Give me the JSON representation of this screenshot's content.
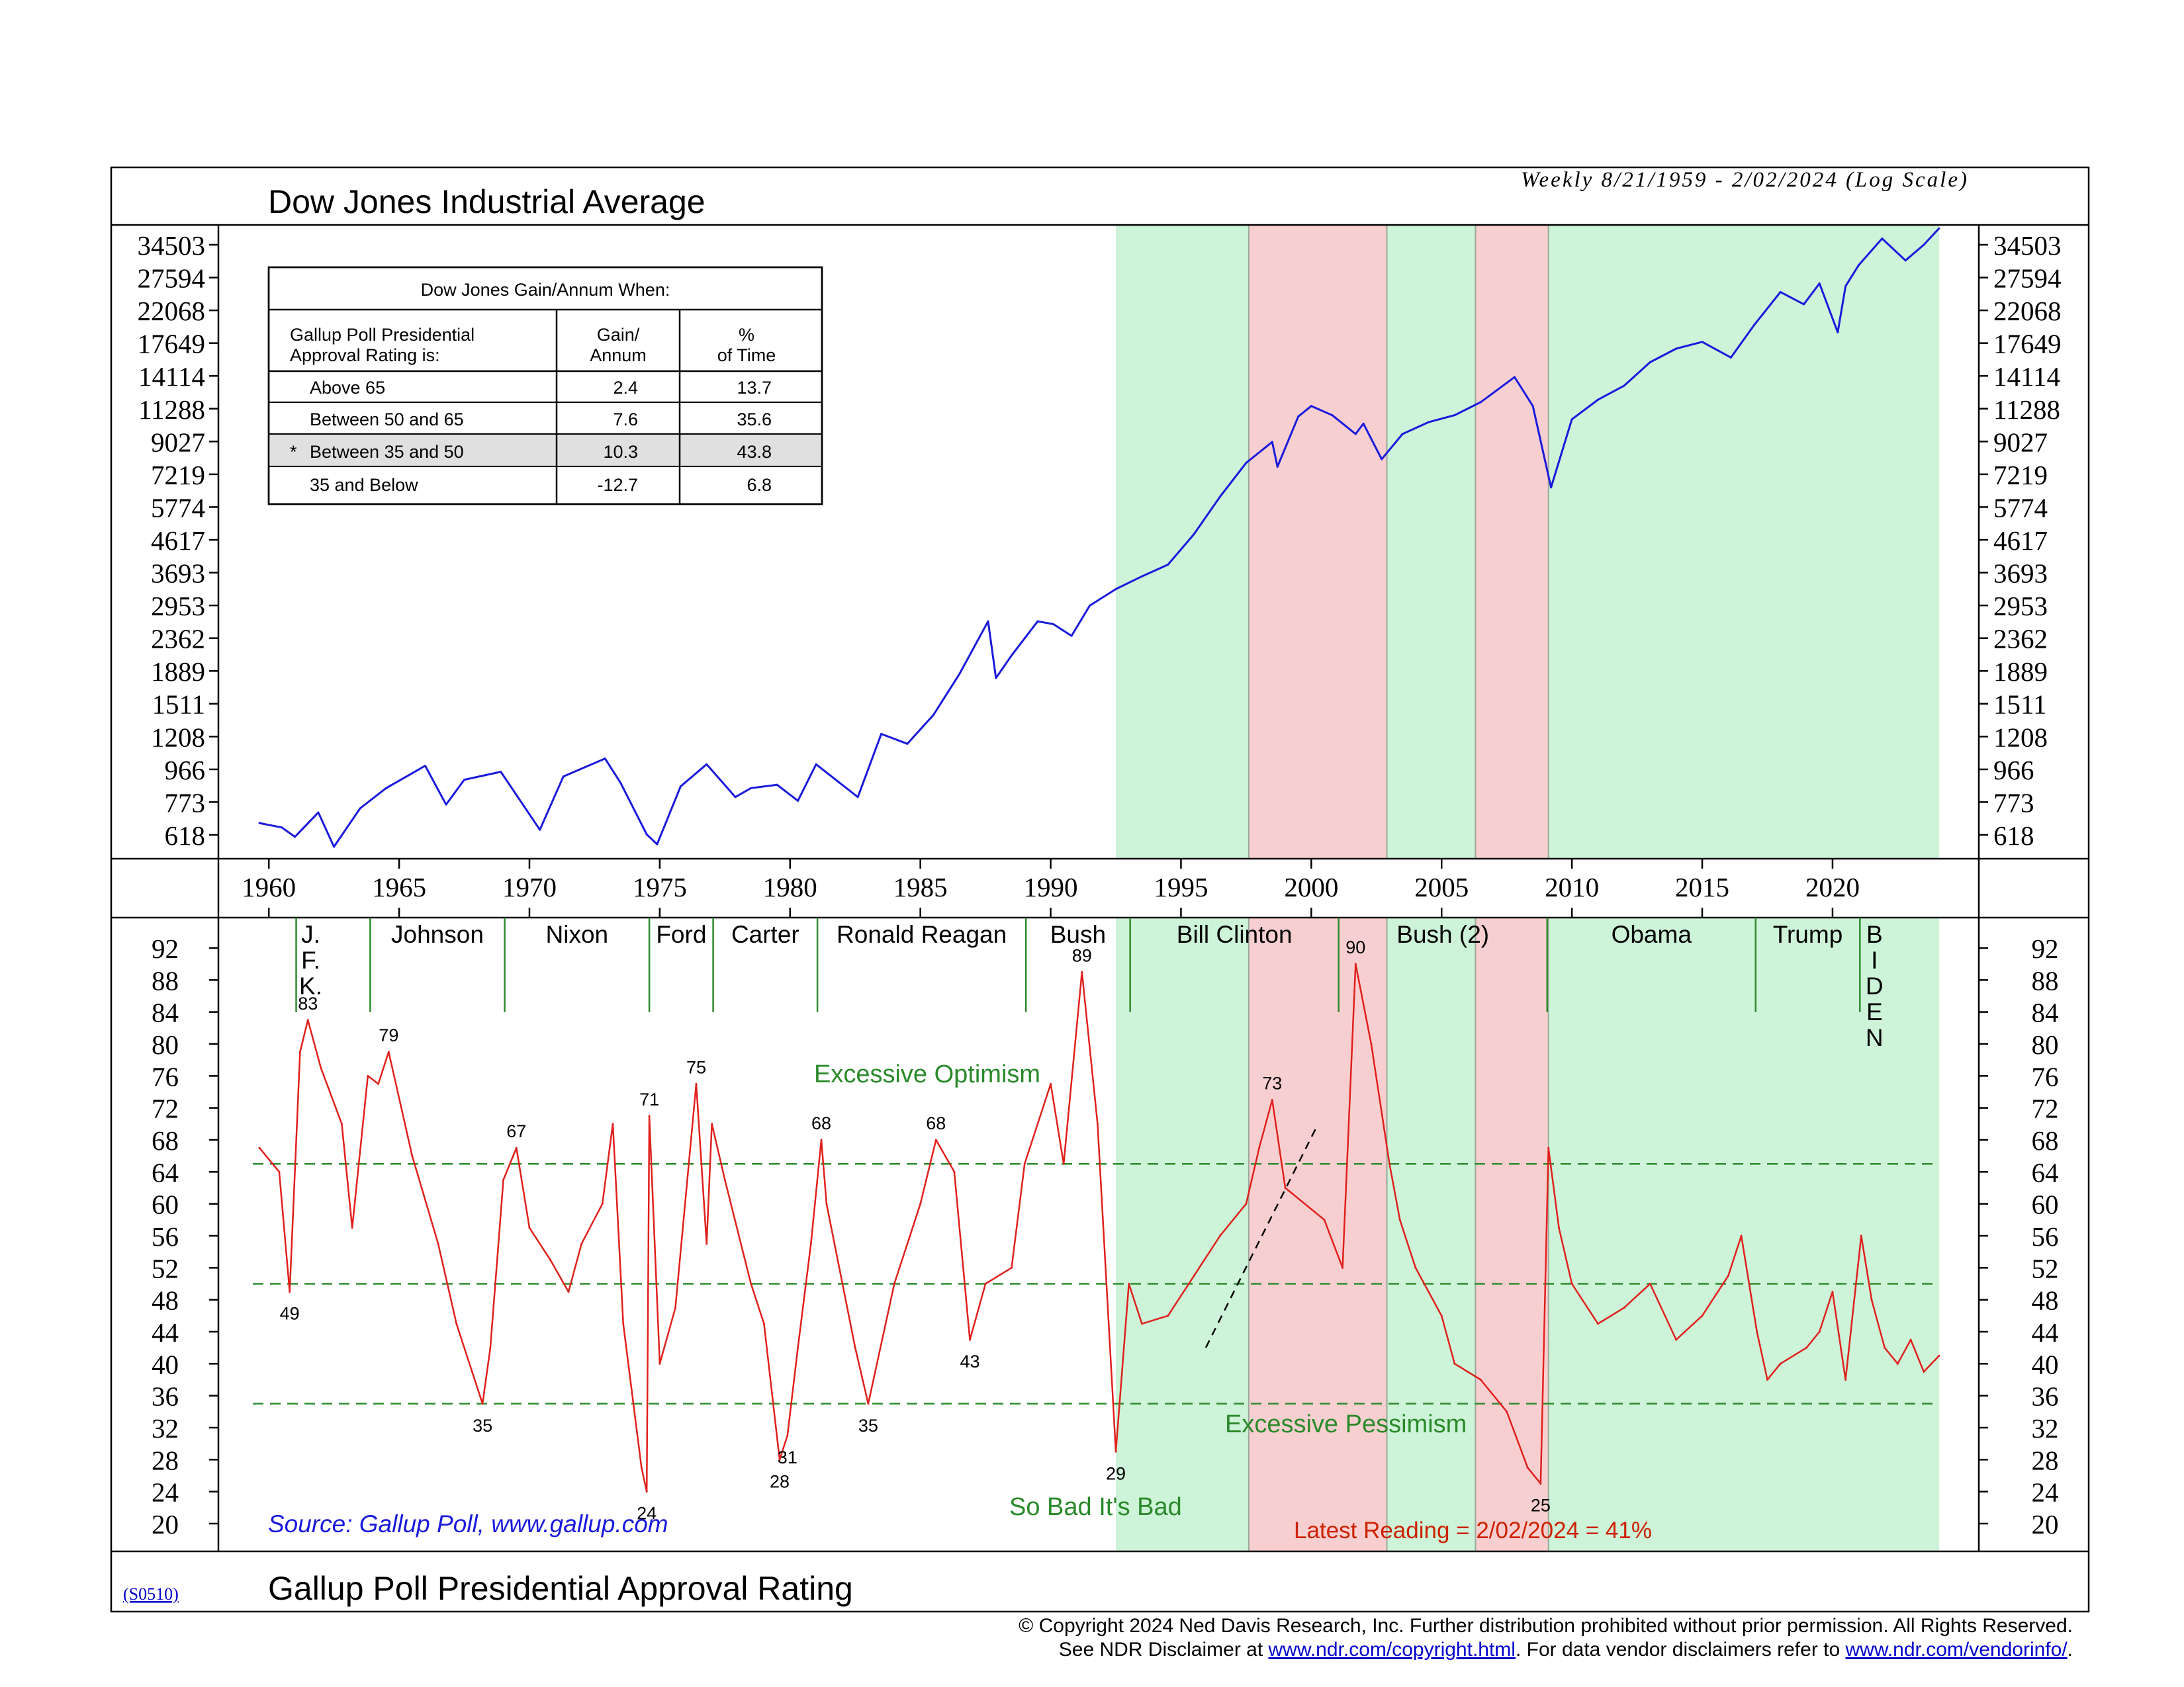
{
  "header": {
    "title": "Dow Jones Industrial Average",
    "subtitle": "Weekly 8/21/1959 - 2/02/2024 (Log Scale)",
    "bottom_title": "Gallup Poll Presidential Approval Rating",
    "code": "(S0510)"
  },
  "gain_table": {
    "title": "Dow Jones Gain/Annum When:",
    "header_col1_line1": "Gallup Poll Presidential",
    "header_col1_line2": "Approval Rating is:",
    "header_col2_line1": "Gain/",
    "header_col2_line2": "Annum",
    "header_col3_line1": "%",
    "header_col3_line2": "of Time",
    "rows": [
      {
        "label": "Above 65",
        "gain": "2.4",
        "time": "13.7",
        "marker": "",
        "highlight": false
      },
      {
        "label": "Between 50 and 65",
        "gain": "7.6",
        "time": "35.6",
        "marker": "",
        "highlight": false
      },
      {
        "label": "Between 35 and 50",
        "gain": "10.3",
        "time": "43.8",
        "marker": "*",
        "highlight": true
      },
      {
        "label": "35 and Below",
        "gain": "-12.7",
        "time": "6.8",
        "marker": "",
        "highlight": false
      }
    ]
  },
  "annotations": {
    "excessive_optimism": "Excessive Optimism",
    "excessive_pessimism": "Excessive Pessimism",
    "so_bad": "So Bad It's Bad",
    "latest": "Latest Reading = 2/02/2024 = 41%",
    "source": "Source: Gallup Poll, www.gallup.com"
  },
  "footer": {
    "line1": "© Copyright 2024 Ned Davis Research, Inc.  Further distribution prohibited without prior permission.  All Rights Reserved.",
    "line2_a": "See NDR Disclaimer at ",
    "link1": "www.ndr.com/copyright.html",
    "line2_b": ". For data vendor disclaimers refer to ",
    "link2": "www.ndr.com/vendorinfo/",
    "line2_c": "."
  },
  "colors": {
    "dow_line": "#1a1adc",
    "approval_line": "#e0201c",
    "green_zone": "#cdf3d8",
    "red_zone": "#f8cfd0",
    "guide_line": "#2e8b2e",
    "annotation_green": "#2a8a2a",
    "annotation_red": "#cc2200",
    "source_blue": "#1a1adc"
  },
  "chart_data": [
    {
      "type": "line",
      "name": "Dow Jones Industrial Average",
      "scale": "log",
      "x_range": [
        1959.64,
        2024.09
      ],
      "xticks": [
        1960,
        1965,
        1970,
        1975,
        1980,
        1985,
        1990,
        1995,
        2000,
        2005,
        2010,
        2015,
        2020
      ],
      "yticks": [
        618,
        773,
        966,
        1208,
        1511,
        1889,
        2362,
        2953,
        3693,
        4617,
        5774,
        7219,
        9027,
        11288,
        14114,
        17649,
        22068,
        27594,
        34503
      ],
      "x": [
        1959.64,
        1960.5,
        1961.0,
        1961.9,
        1962.5,
        1963.5,
        1964.5,
        1966.0,
        1966.8,
        1967.5,
        1968.9,
        1970.4,
        1971.3,
        1972.9,
        1973.5,
        1974.5,
        1974.9,
        1975.8,
        1976.8,
        1977.9,
        1978.5,
        1979.5,
        1980.3,
        1981.0,
        1982.6,
        1983.5,
        1984.5,
        1985.5,
        1986.5,
        1987.6,
        1987.9,
        1988.5,
        1989.5,
        1990.1,
        1990.8,
        1991.5,
        1992.5,
        1993.5,
        1994.5,
        1995.5,
        1996.5,
        1997.5,
        1998.5,
        1998.7,
        1999.5,
        2000.0,
        2000.8,
        2001.7,
        2002.0,
        2002.7,
        2003.5,
        2004.5,
        2005.5,
        2006.5,
        2007.8,
        2008.5,
        2009.2,
        2010.0,
        2011.0,
        2012.0,
        2013.0,
        2014.0,
        2015.0,
        2016.1,
        2017.0,
        2018.0,
        2018.9,
        2019.5,
        2020.2,
        2020.5,
        2021.0,
        2021.9,
        2022.8,
        2023.5,
        2024.09
      ],
      "y": [
        670,
        650,
        610,
        720,
        570,
        740,
        850,
        990,
        760,
        900,
        950,
        640,
        920,
        1040,
        880,
        620,
        580,
        860,
        1000,
        800,
        850,
        870,
        780,
        1000,
        800,
        1230,
        1150,
        1400,
        1850,
        2650,
        1800,
        2100,
        2650,
        2600,
        2400,
        2950,
        3300,
        3600,
        3900,
        4800,
        6200,
        7800,
        9000,
        7600,
        10700,
        11500,
        10800,
        9500,
        10200,
        8000,
        9500,
        10300,
        10800,
        11800,
        14000,
        11500,
        6600,
        10500,
        12000,
        13200,
        15500,
        17000,
        17800,
        16000,
        20000,
        25000,
        23000,
        26500,
        19000,
        26000,
        30000,
        36000,
        31000,
        34500,
        38600
      ]
    },
    {
      "type": "line",
      "name": "Gallup Poll Presidential Approval Rating",
      "x_range": [
        1959.64,
        2024.09
      ],
      "yticks": [
        20,
        24,
        28,
        32,
        36,
        40,
        44,
        48,
        52,
        56,
        60,
        64,
        68,
        72,
        76,
        80,
        84,
        88,
        92
      ],
      "ylim": [
        20,
        92
      ],
      "reference_lines": [
        65,
        50,
        35
      ],
      "x": [
        1959.64,
        1960.4,
        1960.8,
        1961.2,
        1961.5,
        1962.0,
        1962.8,
        1963.2,
        1963.8,
        1964.2,
        1964.6,
        1965.5,
        1966.5,
        1967.2,
        1967.8,
        1968.2,
        1968.5,
        1969.0,
        1969.5,
        1970.0,
        1970.8,
        1971.5,
        1972.0,
        1972.8,
        1973.2,
        1973.6,
        1974.3,
        1974.5,
        1974.6,
        1975.0,
        1975.6,
        1976.4,
        1976.8,
        1977.0,
        1977.5,
        1978.5,
        1979.0,
        1979.6,
        1979.9,
        1980.3,
        1980.8,
        1981.2,
        1981.4,
        1982.5,
        1983.0,
        1984.0,
        1985.0,
        1985.6,
        1986.3,
        1986.9,
        1987.5,
        1988.5,
        1989.0,
        1990.0,
        1990.5,
        1991.2,
        1991.8,
        1992.5,
        1993.0,
        1993.5,
        1994.5,
        1995.5,
        1996.5,
        1997.5,
        1998.0,
        1998.5,
        1999.0,
        2000.5,
        2001.2,
        2001.7,
        2002.3,
        2003.0,
        2003.4,
        2004.0,
        2005.0,
        2005.5,
        2006.5,
        2007.5,
        2008.3,
        2008.8,
        2009.1,
        2009.5,
        2010.0,
        2011.0,
        2012.0,
        2013.0,
        2014.0,
        2015.0,
        2016.0,
        2016.5,
        2017.1,
        2017.5,
        2018.0,
        2019.0,
        2019.5,
        2020.0,
        2020.5,
        2021.1,
        2021.5,
        2022.0,
        2022.5,
        2023.0,
        2023.5,
        2024.09
      ],
      "y": [
        67,
        64,
        49,
        79,
        83,
        77,
        70,
        57,
        76,
        75,
        79,
        66,
        55,
        45,
        39,
        35,
        42,
        63,
        67,
        57,
        53,
        49,
        55,
        60,
        70,
        45,
        27,
        24,
        71,
        40,
        47,
        75,
        55,
        70,
        63,
        50,
        45,
        28,
        31,
        42,
        55,
        68,
        60,
        42,
        35,
        50,
        60,
        68,
        64,
        43,
        50,
        52,
        65,
        75,
        65,
        89,
        70,
        29,
        50,
        45,
        46,
        51,
        56,
        60,
        67,
        73,
        62,
        58,
        52,
        90,
        80,
        65,
        58,
        52,
        46,
        40,
        38,
        34,
        27,
        25,
        67,
        57,
        50,
        45,
        47,
        50,
        43,
        46,
        51,
        56,
        44,
        38,
        40,
        42,
        44,
        49,
        38,
        56,
        48,
        42,
        40,
        43,
        39,
        41
      ]
    }
  ],
  "top_axis": {
    "tick_labels": [
      "34503",
      "27594",
      "22068",
      "17649",
      "14114",
      "11288",
      "9027",
      "7219",
      "5774",
      "4617",
      "3693",
      "2953",
      "2362",
      "1889",
      "1511",
      "1208",
      "966",
      "773",
      "618"
    ]
  },
  "bottom_axis": {
    "tick_labels": [
      "92",
      "88",
      "84",
      "80",
      "76",
      "72",
      "68",
      "64",
      "60",
      "56",
      "52",
      "48",
      "44",
      "40",
      "36",
      "32",
      "28",
      "24",
      "20"
    ]
  },
  "year_labels": [
    "1960",
    "1965",
    "1970",
    "1975",
    "1980",
    "1985",
    "1990",
    "1995",
    "2000",
    "2005",
    "2010",
    "2015",
    "2020"
  ],
  "presidents": [
    {
      "name": "J.\nF.\nK.",
      "start": 1961.05
    },
    {
      "name": "Johnson",
      "start": 1963.89
    },
    {
      "name": "Nixon",
      "start": 1969.05
    },
    {
      "name": "Ford",
      "start": 1974.6
    },
    {
      "name": "Carter",
      "start": 1977.05
    },
    {
      "name": "Ronald Reagan",
      "start": 1981.05
    },
    {
      "name": "Bush",
      "start": 1989.05
    },
    {
      "name": "Bill Clinton",
      "start": 1993.05
    },
    {
      "name": "Bush (2)",
      "start": 2001.05
    },
    {
      "name": "Obama",
      "start": 2009.05
    },
    {
      "name": "Trump",
      "start": 2017.05
    },
    {
      "name": "B\nI\nD\nE\nN",
      "start": 2021.05
    }
  ],
  "peak_labels": [
    {
      "x": 1960.8,
      "y": 49,
      "text": "49",
      "pos": "below"
    },
    {
      "x": 1961.5,
      "y": 83,
      "text": "83",
      "pos": "above"
    },
    {
      "x": 1964.6,
      "y": 79,
      "text": "79",
      "pos": "above"
    },
    {
      "x": 1968.2,
      "y": 35,
      "text": "35",
      "pos": "below"
    },
    {
      "x": 1969.5,
      "y": 67,
      "text": "67",
      "pos": "above"
    },
    {
      "x": 1974.5,
      "y": 24,
      "text": "24",
      "pos": "below"
    },
    {
      "x": 1974.6,
      "y": 71,
      "text": "71",
      "pos": "above"
    },
    {
      "x": 1976.4,
      "y": 75,
      "text": "75",
      "pos": "above"
    },
    {
      "x": 1979.6,
      "y": 28,
      "text": "28",
      "pos": "below"
    },
    {
      "x": 1979.9,
      "y": 31,
      "text": "31",
      "pos": "below"
    },
    {
      "x": 1981.2,
      "y": 68,
      "text": "68",
      "pos": "above"
    },
    {
      "x": 1983.0,
      "y": 35,
      "text": "35",
      "pos": "below"
    },
    {
      "x": 1985.6,
      "y": 68,
      "text": "68",
      "pos": "above"
    },
    {
      "x": 1986.9,
      "y": 43,
      "text": "43",
      "pos": "below"
    },
    {
      "x": 1991.2,
      "y": 89,
      "text": "89",
      "pos": "above"
    },
    {
      "x": 1992.5,
      "y": 29,
      "text": "29",
      "pos": "below"
    },
    {
      "x": 1998.5,
      "y": 73,
      "text": "73",
      "pos": "above"
    },
    {
      "x": 2001.7,
      "y": 90,
      "text": "90",
      "pos": "above"
    },
    {
      "x": 2008.8,
      "y": 25,
      "text": "25",
      "pos": "below"
    }
  ],
  "zones": [
    {
      "start": 1992.5,
      "end": 1997.6,
      "kind": "green"
    },
    {
      "start": 1997.6,
      "end": 2002.9,
      "kind": "red"
    },
    {
      "start": 2002.9,
      "end": 2006.3,
      "kind": "green"
    },
    {
      "start": 2006.3,
      "end": 2009.1,
      "kind": "red"
    },
    {
      "start": 2009.1,
      "end": 2024.09,
      "kind": "green"
    }
  ]
}
